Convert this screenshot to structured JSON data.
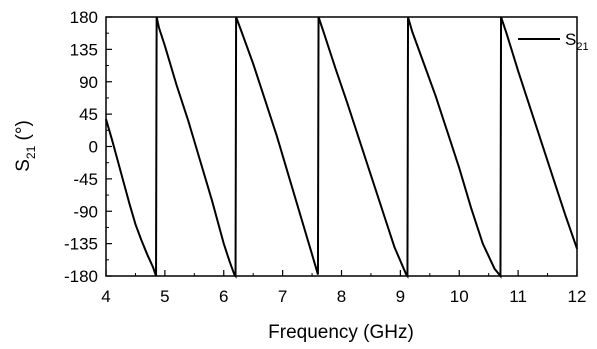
{
  "chart_data": {
    "type": "line",
    "xlabel": "Frequency (GHz)",
    "ylabel_main": "S",
    "ylabel_sub": "21",
    "ylabel_tail": " (°)",
    "xlim": [
      4,
      12
    ],
    "ylim": [
      -180,
      180
    ],
    "xticks": [
      "4",
      "5",
      "6",
      "7",
      "8",
      "9",
      "10",
      "11",
      "12"
    ],
    "yticks": [
      "180",
      "135",
      "90",
      "45",
      "0",
      "-45",
      "-90",
      "-135",
      "-180"
    ],
    "grid": false,
    "legend_position": "top-right",
    "legend_main": "S",
    "legend_sub": "21",
    "line_color": "#000000",
    "series": [
      {
        "name": "S21",
        "x": [
          4.0,
          4.1,
          4.2,
          4.3,
          4.4,
          4.5,
          4.6,
          4.7,
          4.8,
          4.85,
          4.86,
          4.9,
          5.0,
          5.2,
          5.4,
          5.6,
          5.8,
          6.0,
          6.1,
          6.18,
          6.2,
          6.21,
          6.3,
          6.5,
          6.7,
          6.9,
          7.1,
          7.3,
          7.5,
          7.6,
          7.61,
          7.7,
          7.9,
          8.1,
          8.3,
          8.5,
          8.7,
          8.9,
          9.1,
          9.12,
          9.13,
          9.2,
          9.4,
          9.6,
          9.8,
          10.0,
          10.2,
          10.4,
          10.6,
          10.7,
          10.71,
          10.8,
          11.0,
          11.2,
          11.4,
          11.6,
          11.8,
          12.0
        ],
        "y": [
          38,
          10,
          -20,
          -50,
          -80,
          -108,
          -130,
          -150,
          -168,
          -180,
          180,
          165,
          140,
          85,
          35,
          -20,
          -75,
          -135,
          -160,
          -178,
          -180,
          180,
          160,
          115,
          65,
          15,
          -40,
          -95,
          -150,
          -178,
          180,
          158,
          108,
          60,
          10,
          -40,
          -90,
          -140,
          -178,
          -180,
          180,
          160,
          115,
          70,
          20,
          -30,
          -85,
          -135,
          -170,
          -180,
          180,
          158,
          105,
          55,
          5,
          -45,
          -95,
          -142
        ]
      }
    ]
  }
}
